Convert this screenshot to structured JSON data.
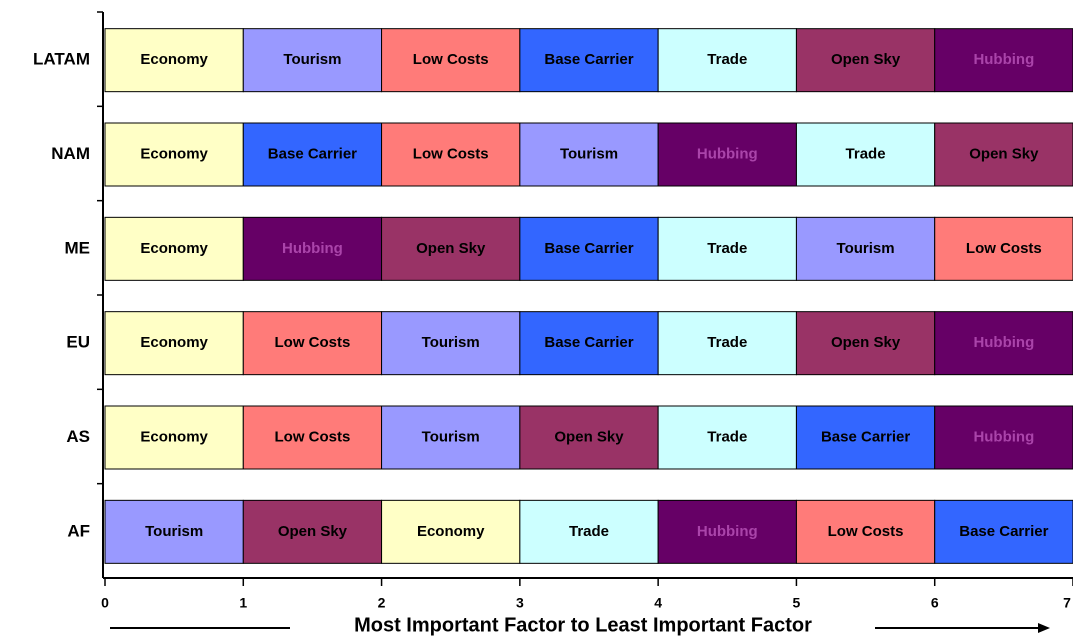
{
  "chart_data": {
    "type": "stacked_barh",
    "x_label": "Most Important Factor to Least Important Factor",
    "categories": [
      "LATAM",
      "NAM",
      "ME",
      "EU",
      "AS",
      "AF"
    ],
    "xlim": [
      0,
      7
    ],
    "xticks": [
      0,
      1,
      2,
      3,
      4,
      5,
      6,
      7
    ],
    "colors": {
      "Economy": "#ffffc6",
      "Tourism": "#9999ff",
      "Low Costs": "#ff7b79",
      "Base Carrier": "#3366ff",
      "Trade": "#ccffff",
      "Open Sky": "#993366",
      "Hubbing": "#660066"
    },
    "series": [
      {
        "values": [
          1,
          1,
          1,
          1,
          1,
          1
        ],
        "labels": [
          "Economy",
          "Economy",
          "Economy",
          "Economy",
          "Economy",
          "Tourism"
        ]
      },
      {
        "values": [
          1,
          1,
          1,
          1,
          1,
          1
        ],
        "labels": [
          "Tourism",
          "Base Carrier",
          "Hubbing",
          "Low Costs",
          "Low Costs",
          "Open Sky"
        ]
      },
      {
        "values": [
          1,
          1,
          1,
          1,
          1,
          1
        ],
        "labels": [
          "Low Costs",
          "Low Costs",
          "Open Sky",
          "Tourism",
          "Tourism",
          "Economy"
        ]
      },
      {
        "values": [
          1,
          1,
          1,
          1,
          1,
          1
        ],
        "labels": [
          "Base Carrier",
          "Tourism",
          "Base Carrier",
          "Base Carrier",
          "Open Sky",
          "Trade"
        ]
      },
      {
        "values": [
          1,
          1,
          1,
          1,
          1,
          1
        ],
        "labels": [
          "Trade",
          "Hubbing",
          "Trade",
          "Trade",
          "Trade",
          "Hubbing"
        ]
      },
      {
        "values": [
          1,
          1,
          1,
          1,
          1,
          1
        ],
        "labels": [
          "Open Sky",
          "Trade",
          "Tourism",
          "Open Sky",
          "Base Carrier",
          "Low Costs"
        ]
      },
      {
        "values": [
          1,
          1,
          1,
          1,
          1,
          1
        ],
        "labels": [
          "Hubbing",
          "Open Sky",
          "Low Costs",
          "Hubbing",
          "Hubbing",
          "Base Carrier"
        ]
      }
    ]
  }
}
